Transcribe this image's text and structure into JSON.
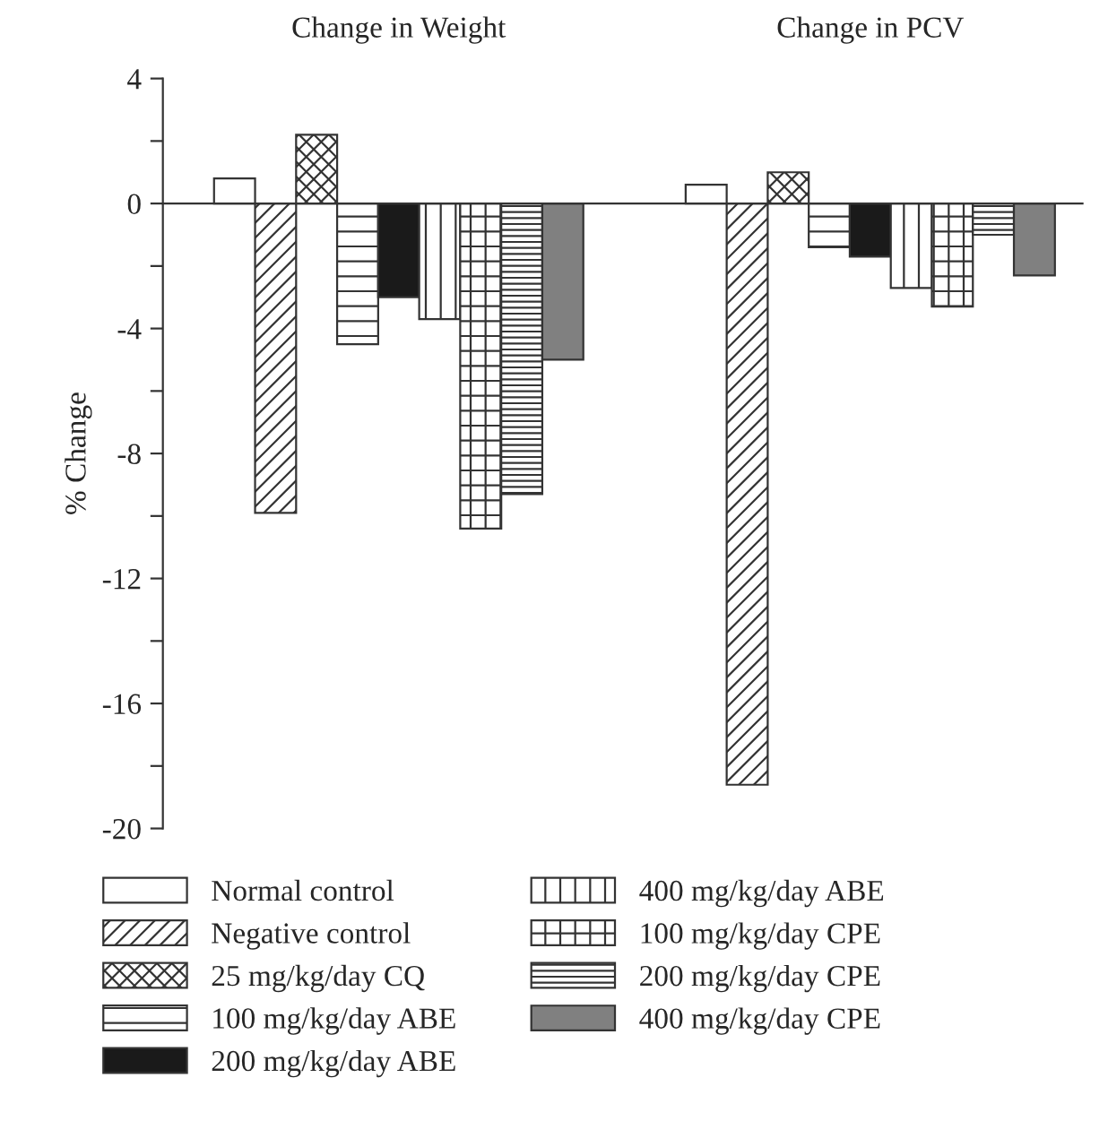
{
  "chart_data": {
    "type": "bar",
    "categories": [
      "Change in Weight",
      "Change in PCV"
    ],
    "ylabel": "% Change",
    "series": [
      {
        "name": "Normal control",
        "color": "#ffffff",
        "values": [
          0.8,
          0.6
        ]
      },
      {
        "name": "Negative control",
        "color": "#333333",
        "values": [
          -9.9,
          -18.6
        ]
      },
      {
        "name": "25 mg/kg/day CQ",
        "color": "#333333",
        "values": [
          2.2,
          1.0
        ]
      },
      {
        "name": "100 mg/kg/day ABE",
        "color": "#333333",
        "values": [
          -4.5,
          -1.4
        ]
      },
      {
        "name": "200 mg/kg/day ABE",
        "color": "#1a1a1a",
        "values": [
          -3.0,
          -1.7
        ]
      },
      {
        "name": "400 mg/kg/day ABE",
        "color": "#333333",
        "values": [
          -3.7,
          -2.7
        ]
      },
      {
        "name": "100 mg/kg/day CPE",
        "color": "#333333",
        "values": [
          -10.4,
          -3.3
        ]
      },
      {
        "name": "200 mg/kg/day CPE",
        "color": "#333333",
        "values": [
          -9.3,
          -1.0
        ]
      },
      {
        "name": "400 mg/kg/day CPE",
        "color": "#808080",
        "values": [
          -5.0,
          -2.3
        ]
      }
    ],
    "ylim": [
      -20,
      4
    ],
    "yticks": [
      -20,
      {
        "value": -18,
        "label": null
      },
      -16,
      {
        "value": -14,
        "label": null
      },
      -12,
      {
        "value": -10,
        "label": null
      },
      -8,
      {
        "value": -6,
        "label": null
      },
      -4,
      {
        "value": -2,
        "label": null
      },
      0,
      {
        "value": 2,
        "label": null
      },
      4
    ],
    "legend": "bottom"
  }
}
